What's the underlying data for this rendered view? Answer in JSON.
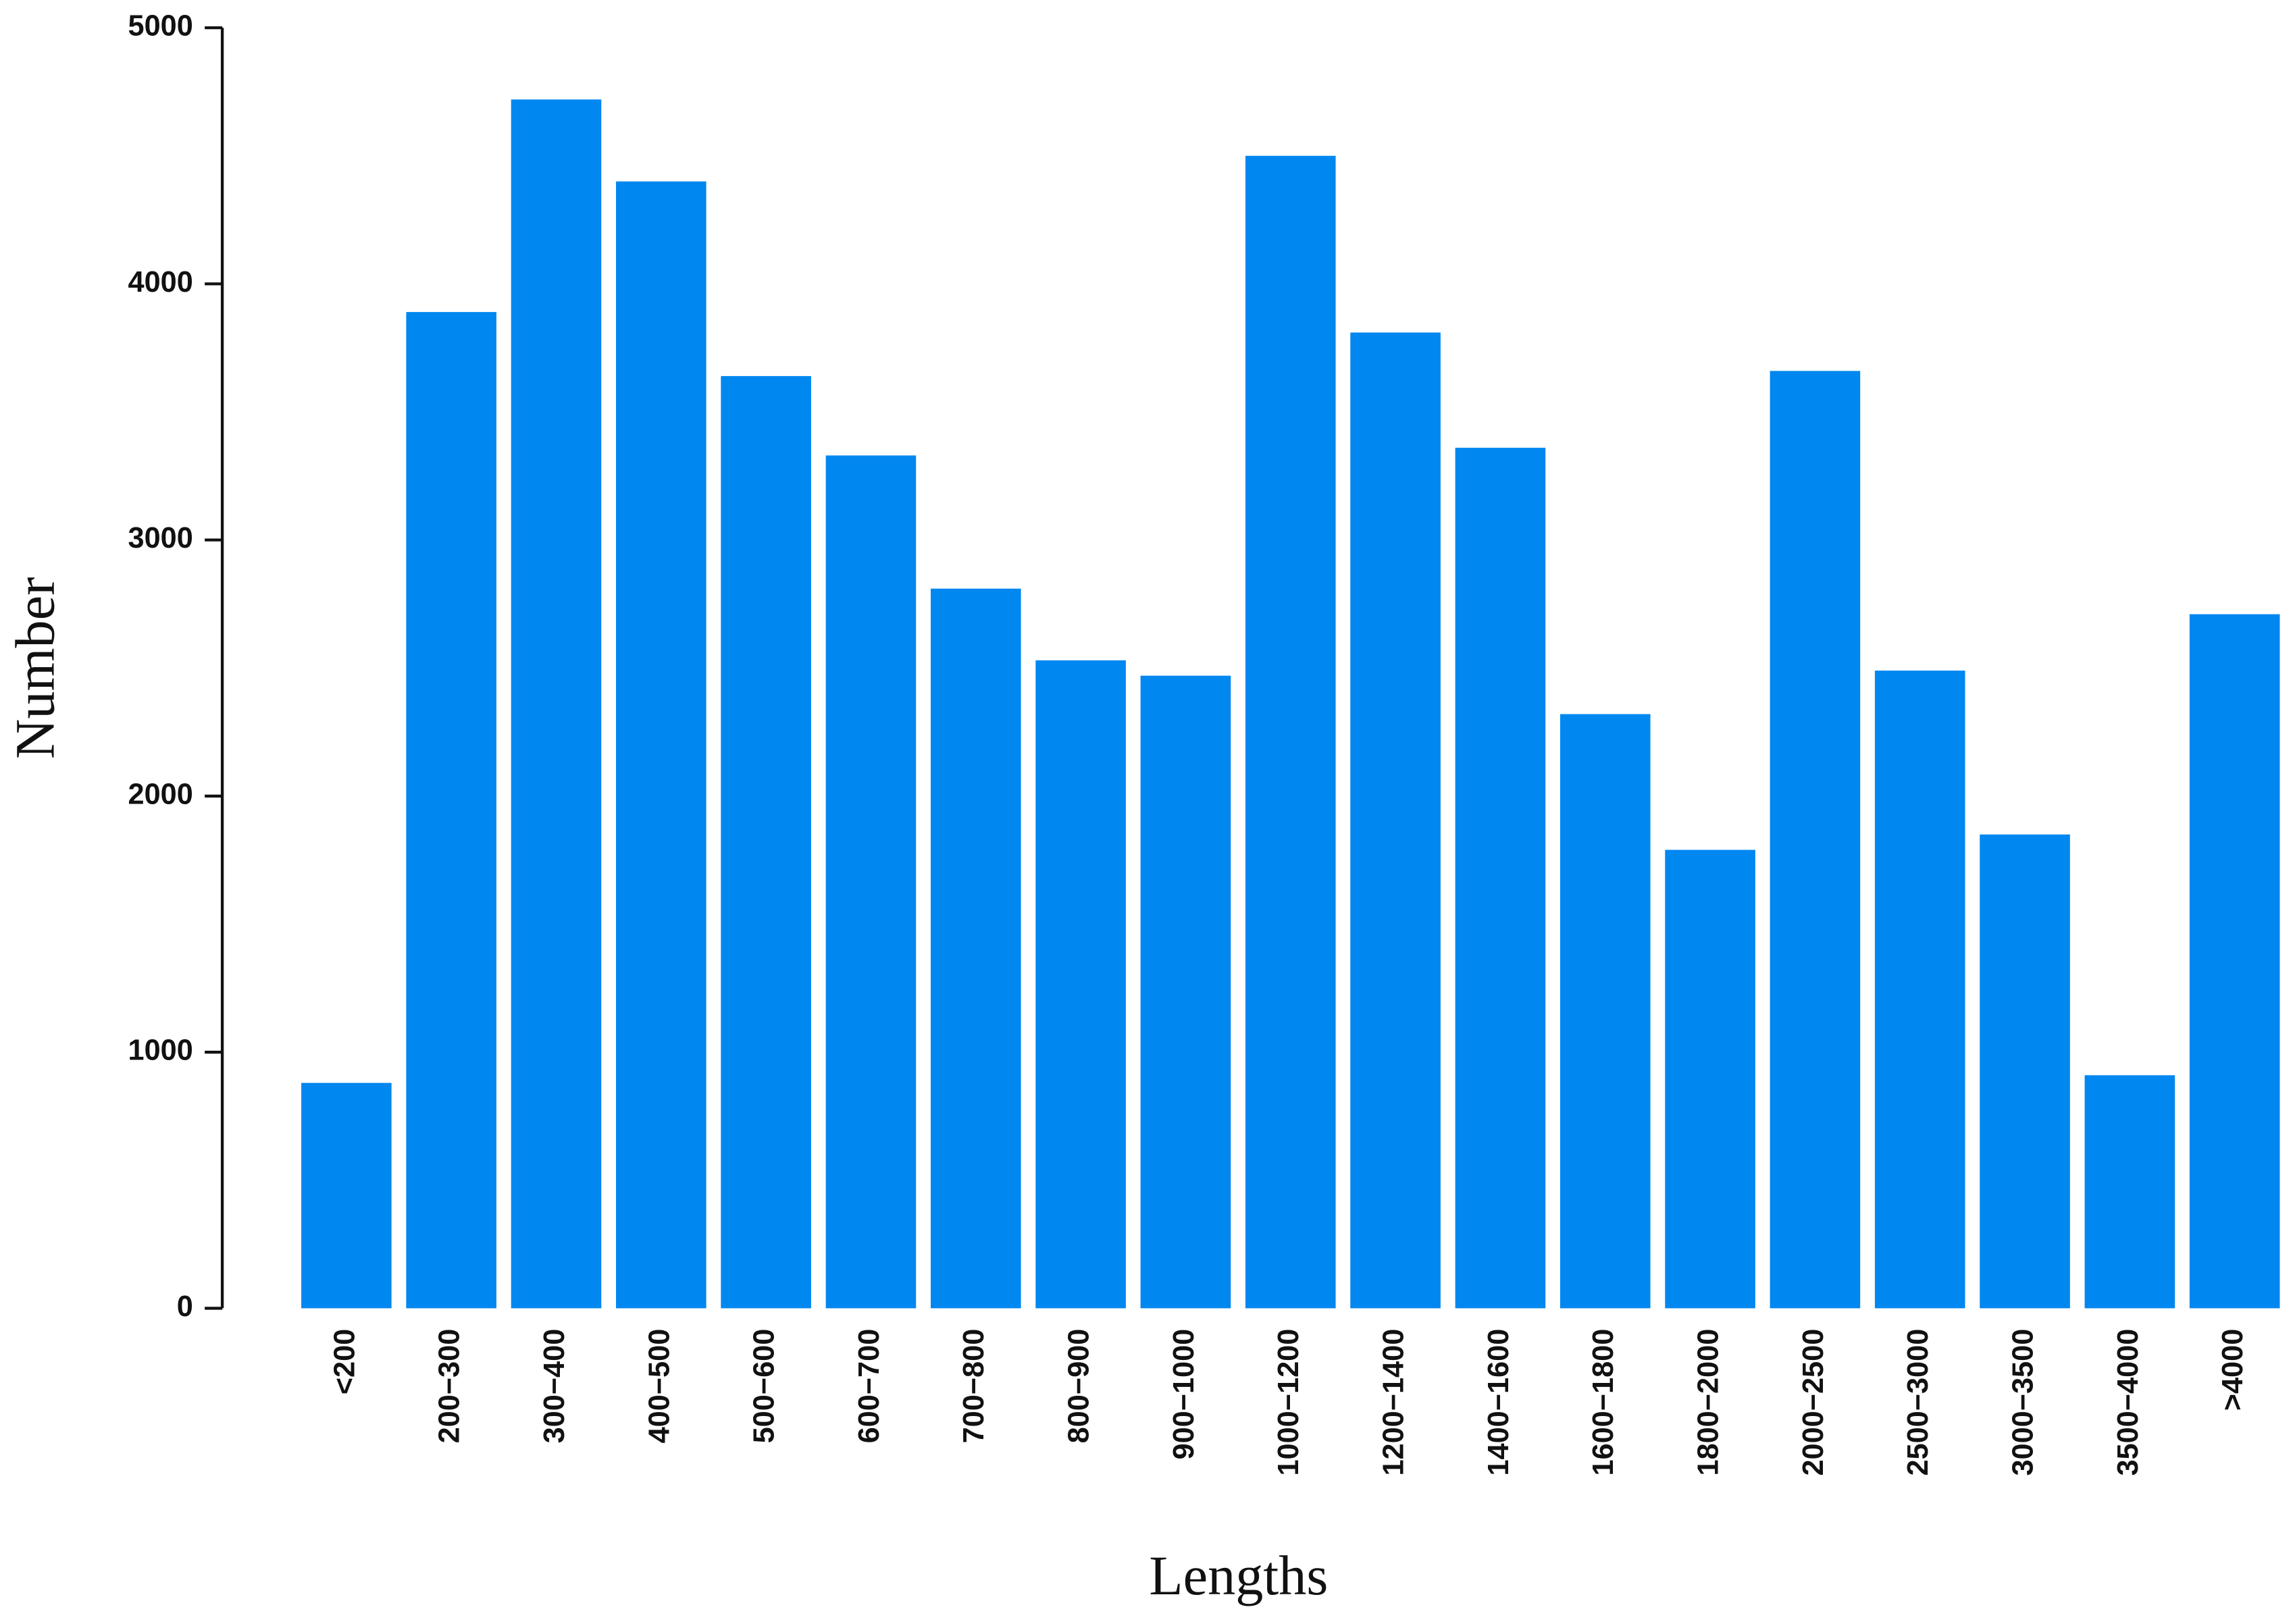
{
  "chart_data": {
    "type": "bar",
    "x_label": "Lengths",
    "y_label": "Number",
    "categories": [
      "<200",
      "200−300",
      "300−400",
      "400−500",
      "500−600",
      "600−700",
      "700−800",
      "800−900",
      "900−1000",
      "1000−1200",
      "1200−1400",
      "1400−1600",
      "1600−1800",
      "1800−2000",
      "2000−2500",
      "2500−3000",
      "3000−3500",
      "3500−4000",
      ">4000"
    ],
    "values": [
      880,
      3890,
      4720,
      4400,
      3640,
      3330,
      2810,
      2530,
      2470,
      4500,
      3810,
      3360,
      2320,
      1790,
      3660,
      2490,
      1850,
      910,
      2710
    ],
    "color": "#0087f0",
    "ylim": [
      0,
      5000
    ],
    "yticks": [
      0,
      1000,
      2000,
      3000,
      4000,
      5000
    ],
    "grid": false
  }
}
